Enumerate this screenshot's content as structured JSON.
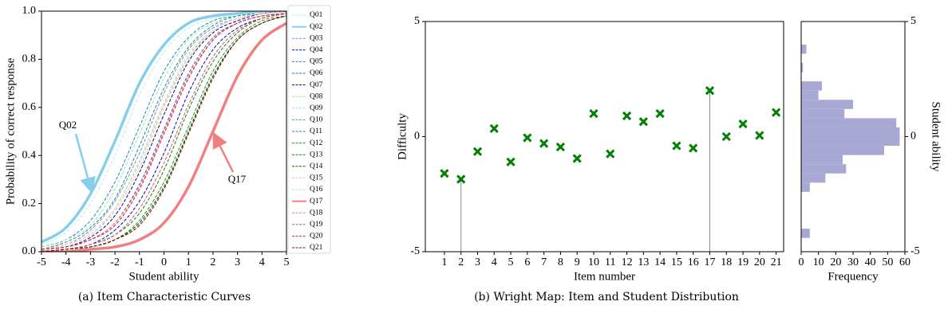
{
  "chart_data": [
    {
      "type": "line",
      "xlabel": "Student ability",
      "ylabel": "Probability of correct response",
      "caption": "(a) Item Characteristic Curves",
      "x": [
        -5,
        -4,
        -3,
        -2,
        -1,
        0,
        1,
        2,
        3,
        4,
        5
      ],
      "xlim": [
        -5,
        5
      ],
      "xticks": [
        -5,
        -4,
        -3,
        -2,
        -1,
        0,
        1,
        2,
        3,
        4,
        5
      ],
      "ylim": [
        0,
        1
      ],
      "yticks": [
        {
          "value": 0,
          "label": "0.0"
        },
        {
          "value": 0.2,
          "label": "0.2"
        },
        {
          "value": 0.4,
          "label": "0.4"
        },
        {
          "value": 0.6,
          "label": "0.6"
        },
        {
          "value": 0.8,
          "label": "0.8"
        },
        {
          "value": 1,
          "label": "1.0"
        }
      ],
      "legend": "right",
      "annotations": [
        {
          "text": "Q02"
        },
        {
          "text": "Q17"
        }
      ],
      "series": [
        {
          "name": "Q01",
          "color": "#b9ecec",
          "linestyle": "dashed",
          "linewidth": 1,
          "values": [
            0.03,
            0.08,
            0.2,
            0.4,
            0.65,
            0.83,
            0.93,
            0.97,
            0.99,
            1,
            1
          ]
        },
        {
          "name": "Q02",
          "color": "#87ceeb",
          "linestyle": "solid",
          "linewidth": 3.5,
          "values": [
            0.04,
            0.1,
            0.24,
            0.46,
            0.7,
            0.86,
            0.95,
            0.98,
            0.99,
            1,
            1
          ]
        },
        {
          "name": "Q03",
          "color": "#6495ed",
          "linestyle": "dashed",
          "linewidth": 1,
          "values": [
            0.01,
            0.03,
            0.09,
            0.21,
            0.41,
            0.66,
            0.84,
            0.93,
            0.97,
            0.99,
            1
          ]
        },
        {
          "name": "Q04",
          "color": "#0000cd",
          "linestyle": "dashed",
          "linewidth": 1,
          "values": [
            0,
            0.01,
            0.03,
            0.09,
            0.21,
            0.41,
            0.66,
            0.84,
            0.93,
            0.97,
            0.99
          ]
        },
        {
          "name": "Q05",
          "color": "#1a8aa8",
          "linestyle": "dashed",
          "linewidth": 1,
          "values": [
            0.02,
            0.05,
            0.13,
            0.29,
            0.52,
            0.75,
            0.89,
            0.96,
            0.98,
            0.99,
            1
          ]
        },
        {
          "name": "Q06",
          "color": "#3a64b0",
          "linestyle": "dashed",
          "linewidth": 1,
          "values": [
            0.01,
            0.02,
            0.05,
            0.12,
            0.28,
            0.51,
            0.74,
            0.89,
            0.95,
            0.98,
            0.99
          ]
        },
        {
          "name": "Q07",
          "color": "#000080",
          "linestyle": "dashed",
          "linewidth": 1,
          "values": [
            0.01,
            0.02,
            0.06,
            0.15,
            0.33,
            0.57,
            0.79,
            0.91,
            0.96,
            0.99,
            1
          ]
        },
        {
          "name": "Q08",
          "color": "#90ee90",
          "linestyle": "dashed",
          "linewidth": 1,
          "values": [
            0.01,
            0.03,
            0.07,
            0.18,
            0.37,
            0.61,
            0.81,
            0.92,
            0.97,
            0.99,
            1
          ]
        },
        {
          "name": "Q09",
          "color": "#9ee6c8",
          "linestyle": "dashed",
          "linewidth": 1,
          "values": [
            0.02,
            0.05,
            0.11,
            0.26,
            0.49,
            0.72,
            0.88,
            0.95,
            0.98,
            0.99,
            1
          ]
        },
        {
          "name": "Q10",
          "color": "#3cb371",
          "linestyle": "dashed",
          "linewidth": 1,
          "values": [
            0,
            0.01,
            0.02,
            0.05,
            0.12,
            0.27,
            0.5,
            0.73,
            0.88,
            0.95,
            0.98
          ]
        },
        {
          "name": "Q11",
          "color": "#2e8b57",
          "linestyle": "dashed",
          "linewidth": 1,
          "values": [
            0.01,
            0.04,
            0.1,
            0.22,
            0.44,
            0.68,
            0.85,
            0.94,
            0.98,
            0.99,
            1
          ]
        },
        {
          "name": "Q12",
          "color": "#228b22",
          "linestyle": "dashed",
          "linewidth": 1,
          "values": [
            0,
            0.01,
            0.02,
            0.05,
            0.13,
            0.29,
            0.52,
            0.75,
            0.89,
            0.96,
            0.98
          ]
        },
        {
          "name": "Q13",
          "color": "#1a7a1a",
          "linestyle": "dashed",
          "linewidth": 1,
          "values": [
            0,
            0.01,
            0.03,
            0.07,
            0.16,
            0.34,
            0.59,
            0.79,
            0.91,
            0.97,
            0.99
          ]
        },
        {
          "name": "Q14",
          "color": "#006400",
          "linestyle": "dashed",
          "linewidth": 1,
          "values": [
            0,
            0.01,
            0.02,
            0.05,
            0.12,
            0.27,
            0.5,
            0.73,
            0.88,
            0.95,
            0.98
          ]
        },
        {
          "name": "Q15",
          "color": "#ffb6c1",
          "linestyle": "dashed",
          "linewidth": 1,
          "values": [
            0.01,
            0.03,
            0.07,
            0.17,
            0.35,
            0.6,
            0.8,
            0.92,
            0.97,
            0.99,
            1
          ]
        },
        {
          "name": "Q16",
          "color": "#f0c8c8",
          "linestyle": "dashed",
          "linewidth": 1,
          "values": [
            0.01,
            0.03,
            0.08,
            0.18,
            0.38,
            0.62,
            0.82,
            0.92,
            0.97,
            0.99,
            1
          ]
        },
        {
          "name": "Q17",
          "color": "#f08080",
          "linestyle": "solid",
          "linewidth": 3.5,
          "values": [
            0,
            0,
            0.01,
            0.02,
            0.05,
            0.12,
            0.27,
            0.5,
            0.73,
            0.88,
            0.95
          ]
        },
        {
          "name": "Q18",
          "color": "#fa8072",
          "linestyle": "dashed",
          "linewidth": 1,
          "values": [
            0.01,
            0.02,
            0.05,
            0.12,
            0.27,
            0.5,
            0.73,
            0.88,
            0.95,
            0.98,
            0.99
          ]
        },
        {
          "name": "Q19",
          "color": "#cd5c5c",
          "linestyle": "dashed",
          "linewidth": 1,
          "values": [
            0,
            0.01,
            0.03,
            0.07,
            0.18,
            0.37,
            0.61,
            0.81,
            0.92,
            0.97,
            0.99
          ]
        },
        {
          "name": "Q20",
          "color": "#dc143c",
          "linestyle": "dashed",
          "linewidth": 1,
          "values": [
            0.01,
            0.02,
            0.05,
            0.11,
            0.26,
            0.49,
            0.72,
            0.88,
            0.95,
            0.98,
            0.99
          ]
        },
        {
          "name": "Q21",
          "color": "#8b0000",
          "linestyle": "dashed",
          "linewidth": 1,
          "values": [
            0,
            0.01,
            0.02,
            0.05,
            0.11,
            0.26,
            0.49,
            0.72,
            0.88,
            0.95,
            0.98
          ]
        }
      ]
    },
    {
      "type": "scatter",
      "xlabel": "Item number",
      "ylabel": "Difficulty",
      "caption": "(b) Wright Map: Item and Student Distribution",
      "color": "#008000",
      "x": [
        1,
        2,
        3,
        4,
        5,
        6,
        7,
        8,
        9,
        10,
        11,
        12,
        13,
        14,
        15,
        16,
        17,
        18,
        19,
        20,
        21
      ],
      "values": [
        -1.6,
        -1.85,
        -0.65,
        0.35,
        -1.1,
        -0.05,
        -0.3,
        -0.45,
        -0.95,
        1.0,
        -0.75,
        0.9,
        0.65,
        1.0,
        -0.4,
        -0.5,
        2.0,
        0,
        0.55,
        0.05,
        1.05
      ],
      "xlim": [
        -0.15,
        21.45
      ],
      "xticks": [
        1,
        2,
        3,
        4,
        5,
        6,
        7,
        8,
        9,
        10,
        11,
        12,
        13,
        14,
        15,
        16,
        17,
        18,
        19,
        20,
        21
      ],
      "ylim": [
        -5,
        5
      ],
      "yticks": [
        -5,
        0,
        5
      ]
    },
    {
      "type": "histogram",
      "orientation": "horizontal",
      "xlabel": "Frequency",
      "ylabel": "Student ability",
      "yaxis": "right",
      "color": "#9e9ed0",
      "bins": [
        -4.4,
        -4,
        -3.6,
        -3.2,
        -2.8,
        -2.4,
        -2,
        -1.6,
        -1.2,
        -0.8,
        -0.4,
        0,
        0.4,
        0.8,
        1.2,
        1.6,
        2,
        2.4,
        2.8,
        3.2,
        3.6,
        4,
        4.4
      ],
      "counts": [
        5,
        0,
        0,
        0,
        0,
        5,
        14,
        26,
        24,
        48,
        57,
        57,
        55,
        25,
        30,
        10,
        12,
        0,
        1,
        0,
        3,
        0
      ],
      "xlim": [
        0,
        60
      ],
      "xticks": [
        0,
        10,
        20,
        30,
        40,
        50,
        60
      ],
      "ylim": [
        -5,
        5
      ],
      "yticks": [
        -5,
        0,
        5
      ]
    }
  ]
}
